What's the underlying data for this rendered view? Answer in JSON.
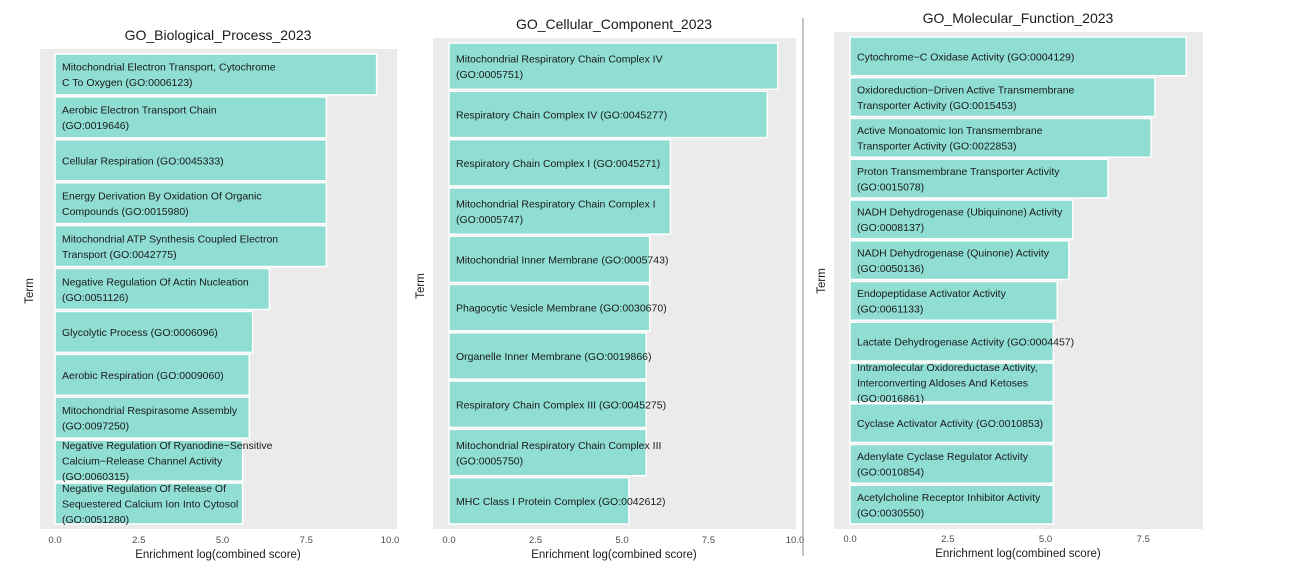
{
  "colors": {
    "bar": "#8fddd3",
    "bar_stroke": "#ffffff",
    "panel_bg": "#ebebeb",
    "divider": "#8a8a8a"
  },
  "chart_data": [
    {
      "type": "bar",
      "orientation": "horizontal",
      "title": "GO_Biological_Process_2023",
      "xlabel": "Enrichment log(combined score)",
      "ylabel": "Term",
      "xlim": [
        0,
        10
      ],
      "xticks": [
        "0.0",
        "2.5",
        "5.0",
        "7.5",
        "10.0"
      ],
      "categories": [
        [
          "Mitochondrial Electron Transport, Cytochrome",
          "C To Oxygen (GO:0006123)"
        ],
        [
          "Aerobic Electron Transport Chain",
          "(GO:0019646)"
        ],
        [
          "Cellular Respiration (GO:0045333)"
        ],
        [
          "Energy Derivation By Oxidation Of Organic",
          "Compounds (GO:0015980)"
        ],
        [
          "Mitochondrial ATP Synthesis Coupled Electron",
          "Transport (GO:0042775)"
        ],
        [
          "Negative Regulation Of Actin Nucleation",
          "(GO:0051126)"
        ],
        [
          "Glycolytic Process (GO:0006096)"
        ],
        [
          "Aerobic Respiration (GO:0009060)"
        ],
        [
          "Mitochondrial Respirasome Assembly",
          "(GO:0097250)"
        ],
        [
          "Negative Regulation Of Ryanodine−Sensitive",
          "Calcium−Release Channel Activity",
          "(GO:0060315)"
        ],
        [
          "Negative Regulation Of Release Of",
          "Sequestered Calcium Ion Into Cytosol",
          "(GO:0051280)"
        ]
      ],
      "values": [
        9.6,
        8.1,
        8.1,
        8.1,
        8.1,
        6.4,
        5.9,
        5.8,
        5.8,
        5.6,
        5.6
      ]
    },
    {
      "type": "bar",
      "orientation": "horizontal",
      "title": "GO_Cellular_Component_2023",
      "xlabel": "Enrichment log(combined score)",
      "ylabel": "Term",
      "xlim": [
        0,
        10
      ],
      "xticks": [
        "0.0",
        "2.5",
        "5.0",
        "7.5",
        "10.0"
      ],
      "categories": [
        [
          "Mitochondrial Respiratory Chain Complex IV",
          "(GO:0005751)"
        ],
        [
          "Respiratory Chain Complex IV (GO:0045277)"
        ],
        [
          "Respiratory Chain Complex I (GO:0045271)"
        ],
        [
          "Mitochondrial Respiratory Chain Complex I",
          "(GO:0005747)"
        ],
        [
          "Mitochondrial Inner Membrane (GO:0005743)"
        ],
        [
          "Phagocytic Vesicle Membrane (GO:0030670)"
        ],
        [
          "Organelle Inner Membrane (GO:0019866)"
        ],
        [
          "Respiratory Chain Complex III (GO:0045275)"
        ],
        [
          "Mitochondrial Respiratory Chain Complex III",
          "(GO:0005750)"
        ],
        [
          "MHC Class I Protein Complex (GO:0042612)"
        ]
      ],
      "values": [
        9.5,
        9.2,
        6.4,
        6.4,
        5.8,
        5.8,
        5.7,
        5.7,
        5.7,
        5.2
      ]
    },
    {
      "type": "bar",
      "orientation": "horizontal",
      "title": "GO_Molecular_Function_2023",
      "xlabel": "Enrichment log(combined score)",
      "ylabel": "Term",
      "xlim": [
        0,
        9.0
      ],
      "xticks": [
        "0.0",
        "2.5",
        "5.0",
        "7.5"
      ],
      "categories": [
        [
          "Cytochrome−C Oxidase Activity (GO:0004129)"
        ],
        [
          "Oxidoreduction−Driven Active Transmembrane",
          "Transporter Activity (GO:0015453)"
        ],
        [
          "Active Monoatomic Ion Transmembrane",
          "Transporter Activity (GO:0022853)"
        ],
        [
          "Proton Transmembrane Transporter Activity",
          "(GO:0015078)"
        ],
        [
          "NADH Dehydrogenase (Ubiquinone) Activity",
          "(GO:0008137)"
        ],
        [
          "NADH Dehydrogenase (Quinone) Activity",
          "(GO:0050136)"
        ],
        [
          "Endopeptidase Activator Activity",
          "(GO:0061133)"
        ],
        [
          "Lactate Dehydrogenase Activity (GO:0004457)"
        ],
        [
          "Intramolecular Oxidoreductase Activity,",
          "Interconverting Aldoses And Ketoses",
          "(GO:0016861)"
        ],
        [
          "Cyclase Activator Activity (GO:0010853)"
        ],
        [
          "Adenylate Cyclase Regulator Activity",
          "(GO:0010854)"
        ],
        [
          "Acetylcholine Receptor Inhibitor Activity",
          "(GO:0030550)"
        ]
      ],
      "values": [
        8.6,
        7.8,
        7.7,
        6.6,
        5.7,
        5.6,
        5.3,
        5.2,
        5.2,
        5.2,
        5.2,
        5.2
      ]
    }
  ]
}
